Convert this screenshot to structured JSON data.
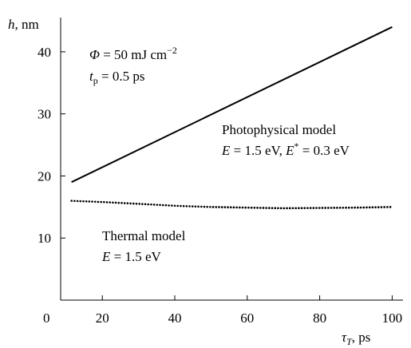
{
  "chart_data": {
    "type": "line",
    "y_label": {
      "symbol": "h",
      "rest": ", nm"
    },
    "x_label": {
      "symbol": "τ",
      "sub": "T",
      "rest": ", ps"
    },
    "origin_label": "0",
    "xlim": [
      8.5,
      103
    ],
    "xticks": [
      20,
      40,
      60,
      80,
      100
    ],
    "ylim": [
      0,
      45
    ],
    "yticks": [
      10,
      20,
      30,
      40
    ],
    "conditions": [
      {
        "symbol": "Φ",
        "rest": " = 50 mJ cm",
        "sup": "−2"
      },
      {
        "symbol": "t",
        "sub": "p",
        "rest": " = 0.5 ps"
      }
    ],
    "series": [
      {
        "name": "Photophysical model",
        "color": "#000000",
        "style": "solid",
        "parameters": {
          "e": "E",
          "e_val": " = 1.5 eV, ",
          "e2": "E",
          "star": "*",
          "e2_val": " = 0.3 eV"
        },
        "x": [
          11.5,
          100
        ],
        "values": [
          19,
          44
        ]
      },
      {
        "name": "Thermal model",
        "color": "#000000",
        "style": "dotted",
        "parameters": {
          "e": "E",
          "e_val": " = 1.5 eV"
        },
        "x": [
          11.5,
          20,
          30,
          40,
          50,
          60,
          70,
          80,
          90,
          100
        ],
        "values": [
          16,
          15.8,
          15.5,
          15.2,
          15,
          14.9,
          14.8,
          14.85,
          14.9,
          15
        ]
      }
    ]
  }
}
